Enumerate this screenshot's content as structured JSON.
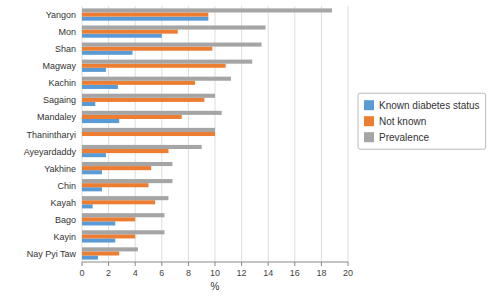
{
  "chart_data": {
    "type": "bar",
    "orientation": "horizontal",
    "categories": [
      "Yangon",
      "Mon",
      "Shan",
      "Magway",
      "Kachin",
      "Sagaing",
      "Mandaley",
      "Thanintharyi",
      "Ayeyardaddy",
      "Yakhine",
      "Chin",
      "Kayah",
      "Bago",
      "Kayin",
      "Nay Pyi Taw"
    ],
    "series": [
      {
        "name": "Known diabetes status",
        "color": "#5B9BD5",
        "values": [
          9.5,
          6.0,
          3.8,
          1.8,
          2.7,
          1.0,
          2.8,
          0.0,
          1.8,
          1.5,
          1.5,
          0.8,
          2.5,
          2.5,
          1.2
        ]
      },
      {
        "name": "Not known",
        "color": "#ED7D31",
        "values": [
          9.5,
          7.2,
          9.8,
          10.8,
          8.5,
          9.2,
          7.5,
          10.0,
          6.5,
          5.2,
          5.0,
          5.5,
          4.0,
          4.0,
          2.8
        ]
      },
      {
        "name": "Prevalence",
        "color": "#A5A5A5",
        "values": [
          18.8,
          13.8,
          13.5,
          12.8,
          11.2,
          10.0,
          10.5,
          10.0,
          9.0,
          6.8,
          6.8,
          6.5,
          6.2,
          6.2,
          4.2
        ]
      }
    ],
    "xlabel": "%",
    "xlim": [
      0,
      20
    ],
    "xticks": [
      0,
      2,
      4,
      6,
      8,
      10,
      12,
      14,
      16,
      18,
      20
    ],
    "grid": true,
    "legend": "right"
  }
}
